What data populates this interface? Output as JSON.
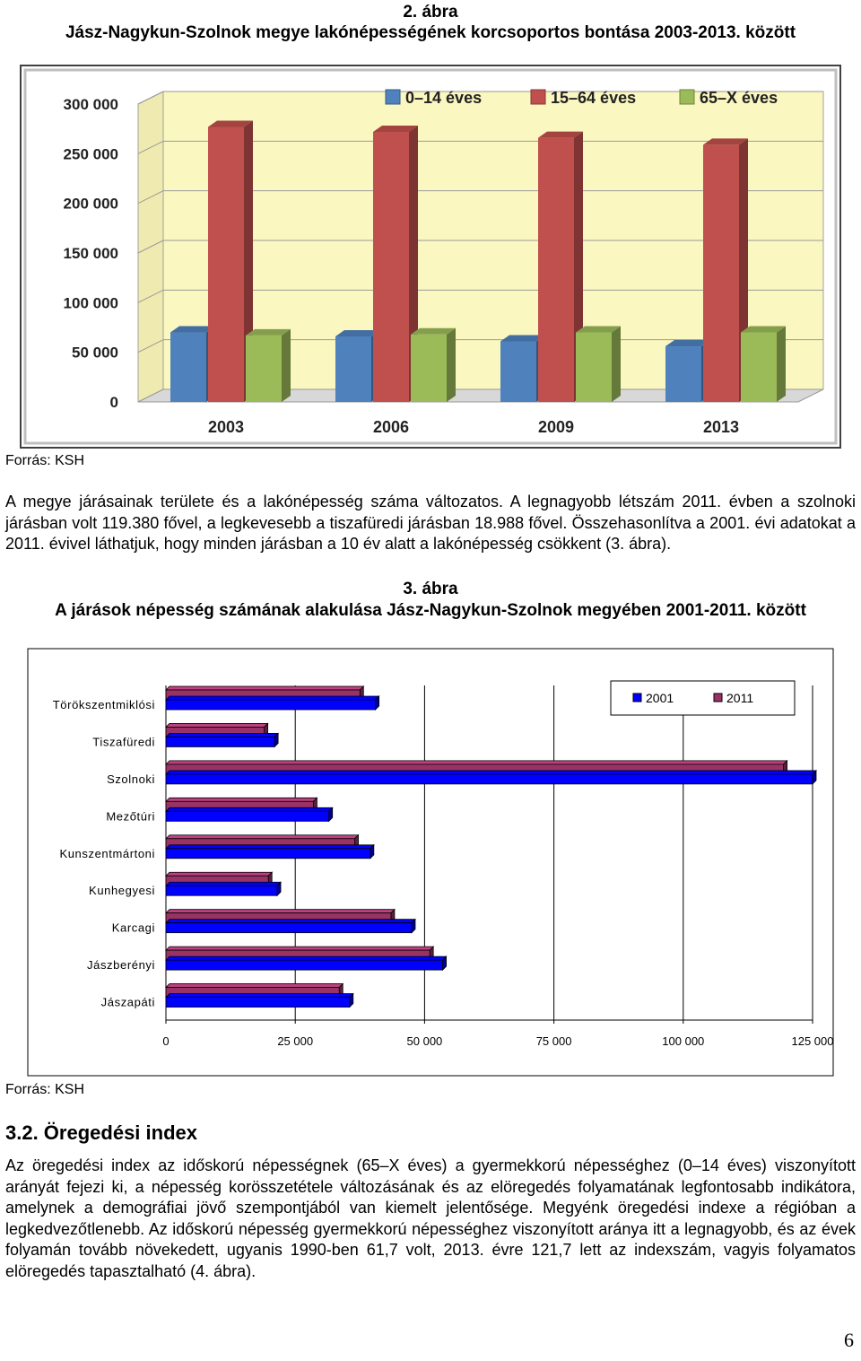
{
  "fig2": {
    "number": "2. ábra",
    "title": "Jász-Nagykun-Szolnok megye lakónépességének korcsoportos bontása 2003-2013. között",
    "source": "Forrás: KSH"
  },
  "paragraph1": "A megye járásainak területe és a lakónépesség száma változatos. A legnagyobb létszám 2011. évben a szolnoki járásban volt 119.380 fővel, a legkevesebb a tiszafüredi járásban 18.988 fővel. Összehasonlítva a 2001. évi adatokat a 2011. évivel láthatjuk, hogy minden járásban a 10 év alatt a lakónépesség csökkent (3. ábra).",
  "fig3": {
    "number": "3. ábra",
    "title": "A járások népesség számának alakulása Jász-Nagykun-Szolnok megyében 2001-2011. között",
    "source": "Forrás: KSH"
  },
  "section": {
    "heading": "3.2. Öregedési index",
    "text": "Az öregedési index az időskorú népességnek (65–X éves) a gyermekkorú népességhez (0–14 éves) viszonyított arányát fejezi ki, a népesség korösszetétele változásának és az elöregedés folyamatának legfontosabb indikátora, amelynek a demográfiai jövő szempontjából van kiemelt jelentősége. Megyénk öregedési indexe a régióban a legkedvezőtlenebb. Az időskorú népesség gyermekkorú népességhez viszonyított aránya itt a legnagyobb, és az évek folyamán tovább növekedett, ugyanis 1990-ben 61,7 volt, 2013. évre 121,7 lett az indexszám, vagyis folyamatos elöregedés tapasztalható (4. ábra)."
  },
  "page_number": "6",
  "chart_data": [
    {
      "type": "bar",
      "categories": [
        "2003",
        "2006",
        "2009",
        "2013"
      ],
      "series": [
        {
          "name": "0–14 éves",
          "color": "#4f81bd",
          "values": [
            70000,
            66000,
            61000,
            56000
          ]
        },
        {
          "name": "15–64 éves",
          "color": "#c0504d",
          "values": [
            277000,
            272000,
            266000,
            259000
          ]
        },
        {
          "name": "65–X éves",
          "color": "#9bbb59",
          "values": [
            67000,
            68000,
            70000,
            70000
          ]
        }
      ],
      "yticks": [
        "0",
        "50 000",
        "100 000",
        "150 000",
        "200 000",
        "250 000",
        "300 000"
      ],
      "ylim": [
        0,
        300000
      ],
      "legend": "top",
      "grid": true
    },
    {
      "type": "bar",
      "orientation": "horizontal",
      "categories": [
        "Törökszentmiklósi",
        "Tiszafüredi",
        "Szolnoki",
        "Mezőtúri",
        "Kunszentmártoni",
        "Kunhegyesi",
        "Karcagi",
        "Jászberényi",
        "Jászapáti"
      ],
      "series": [
        {
          "name": "2001",
          "color": "#0000ff",
          "values": [
            40500,
            21000,
            125000,
            31500,
            39500,
            21500,
            47500,
            53500,
            35500
          ]
        },
        {
          "name": "2011",
          "color": "#993366",
          "values": [
            37500,
            19000,
            119380,
            28500,
            36500,
            19800,
            43500,
            51000,
            33500
          ]
        }
      ],
      "xticks": [
        "0",
        "25 000",
        "50 000",
        "75 000",
        "100 000",
        "125 000"
      ],
      "xlim": [
        0,
        125000
      ],
      "legend": "top-right",
      "grid": true
    }
  ]
}
